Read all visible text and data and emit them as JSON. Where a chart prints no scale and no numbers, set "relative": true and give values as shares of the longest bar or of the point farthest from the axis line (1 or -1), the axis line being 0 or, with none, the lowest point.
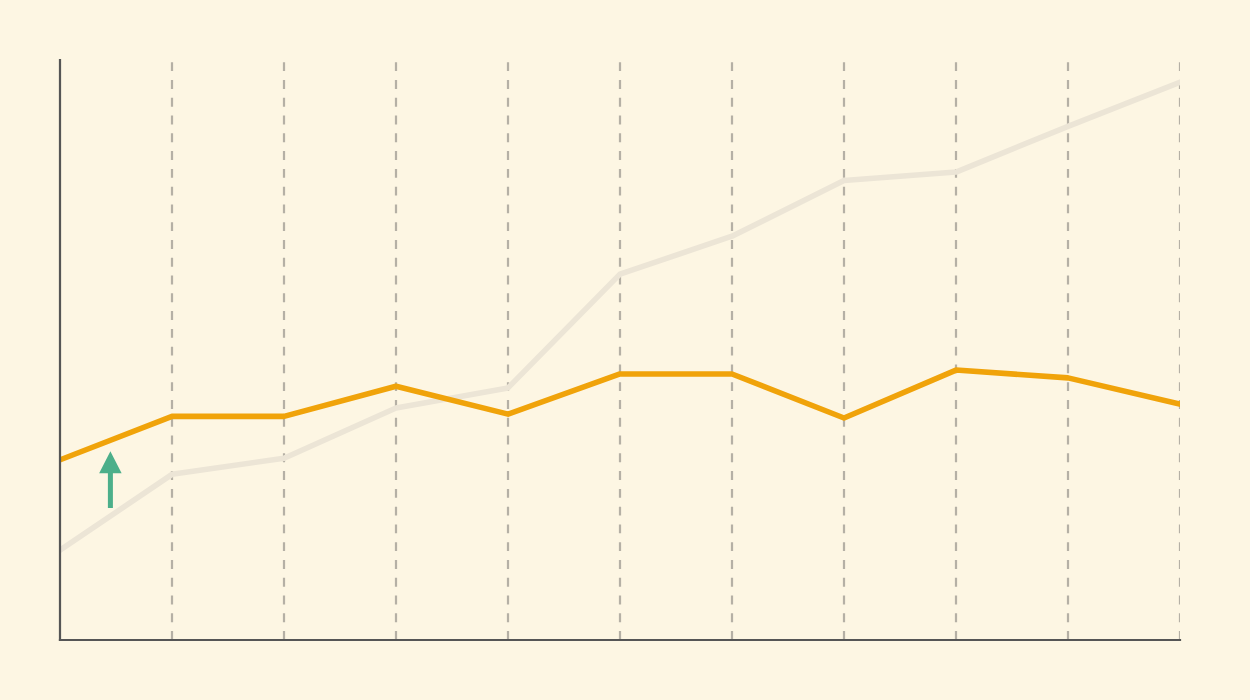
{
  "chart_data": {
    "type": "line",
    "relative": true,
    "categories": [
      null,
      null,
      null,
      null,
      null,
      null,
      null,
      null,
      null,
      null,
      null
    ],
    "series": [
      {
        "color": "#ece5d6",
        "values": [
          0.161,
          0.297,
          0.326,
          0.416,
          0.452,
          0.656,
          0.724,
          0.824,
          0.839,
          0.921,
          1
        ]
      },
      {
        "color": "#f0a30a",
        "values": [
          0.323,
          0.401,
          0.401,
          0.455,
          0.405,
          0.477,
          0.477,
          0.398,
          0.484,
          0.47,
          0.423
        ]
      }
    ],
    "grid": "x",
    "legend": false,
    "marker": "none",
    "line_style": "solid"
  }
}
